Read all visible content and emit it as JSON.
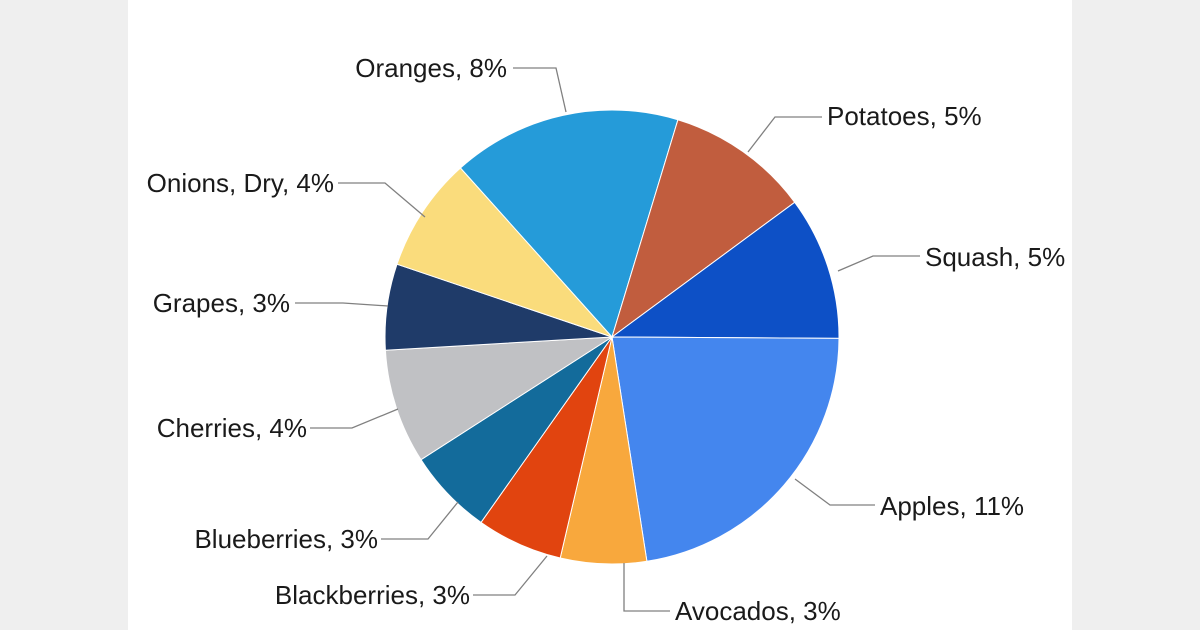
{
  "background": {
    "side_strip_color": "#EFEFEF",
    "card_color": "#FFFFFF"
  },
  "chart_data": {
    "type": "pie",
    "title": "",
    "legend": "none",
    "total": 49,
    "start_angle_deg": -41.9,
    "leader_line_color": "#808080",
    "label_color": "#1A1A1A",
    "slices": [
      {
        "label": "Oranges",
        "pct": 8,
        "color": "#259BD9",
        "display": "Oranges, 8%"
      },
      {
        "label": "Potatoes",
        "pct": 5,
        "color": "#C15D3E",
        "display": "Potatoes, 5%"
      },
      {
        "label": "Squash",
        "pct": 5,
        "color": "#0D50C6",
        "display": "Squash, 5%"
      },
      {
        "label": "Apples",
        "pct": 11,
        "color": "#4486EE",
        "display": "Apples, 11%"
      },
      {
        "label": "Avocados",
        "pct": 3,
        "color": "#F8A83D",
        "display": "Avocados, 3%"
      },
      {
        "label": "Blackberries",
        "pct": 3,
        "color": "#E1440F",
        "display": "Blackberries, 3%"
      },
      {
        "label": "Blueberries",
        "pct": 3,
        "color": "#136B9B",
        "display": "Blueberries, 3%"
      },
      {
        "label": "Cherries",
        "pct": 4,
        "color": "#C0C1C4",
        "display": "Cherries, 4%"
      },
      {
        "label": "Grapes",
        "pct": 3,
        "color": "#1F3B69",
        "display": "Grapes, 3%"
      },
      {
        "label": "Onions, Dry",
        "pct": 4,
        "color": "#FADC7C",
        "display": "Onions, Dry, 4%"
      }
    ]
  }
}
